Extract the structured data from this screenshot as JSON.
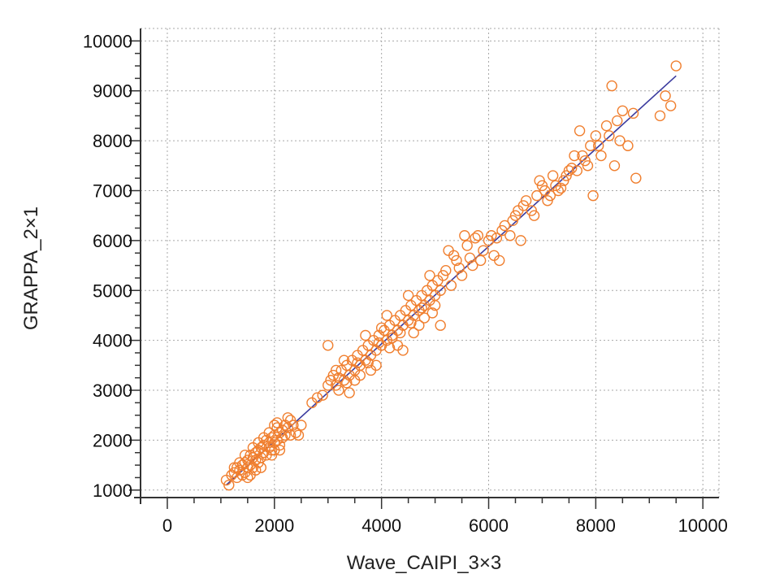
{
  "chart_data": {
    "type": "scatter",
    "title": "",
    "xlabel": "Wave_CAIPI_3×3",
    "ylabel": "GRAPPA_2×1",
    "xlim": [
      -500,
      10300
    ],
    "ylim": [
      850,
      10250
    ],
    "x_ticks": [
      0,
      2000,
      4000,
      6000,
      8000,
      10000
    ],
    "y_ticks": [
      1000,
      2000,
      3000,
      4000,
      5000,
      6000,
      7000,
      8000,
      9000,
      10000
    ],
    "grid": true,
    "colors": {
      "points": "#f07f2f",
      "fit_line": "#3a3a9e",
      "grid": "#a8a8a8",
      "axis": "#333333"
    },
    "fit_line": {
      "x": [
        1100,
        9500
      ],
      "y": [
        1100,
        9300
      ]
    },
    "series": [
      {
        "marker": "open-circle",
        "points": [
          [
            1100,
            1200
          ],
          [
            1150,
            1100
          ],
          [
            1200,
            1300
          ],
          [
            1250,
            1350
          ],
          [
            1300,
            1250
          ],
          [
            1300,
            1450
          ],
          [
            1350,
            1400
          ],
          [
            1400,
            1500
          ],
          [
            1400,
            1300
          ],
          [
            1450,
            1550
          ],
          [
            1450,
            1350
          ],
          [
            1500,
            1600
          ],
          [
            1500,
            1450
          ],
          [
            1550,
            1500
          ],
          [
            1550,
            1700
          ],
          [
            1600,
            1650
          ],
          [
            1600,
            1450
          ],
          [
            1650,
            1750
          ],
          [
            1650,
            1600
          ],
          [
            1700,
            1800
          ],
          [
            1700,
            1550
          ],
          [
            1750,
            1850
          ],
          [
            1750,
            1650
          ],
          [
            1800,
            1900
          ],
          [
            1800,
            1750
          ],
          [
            1850,
            2000
          ],
          [
            1850,
            1700
          ],
          [
            1900,
            1950
          ],
          [
            1900,
            1850
          ],
          [
            1950,
            2050
          ],
          [
            1950,
            1800
          ],
          [
            2000,
            2100
          ],
          [
            2000,
            1950
          ],
          [
            2050,
            2000
          ],
          [
            2050,
            2250
          ],
          [
            2100,
            2150
          ],
          [
            2100,
            1900
          ],
          [
            2150,
            2200
          ],
          [
            2150,
            2050
          ],
          [
            2200,
            2300
          ],
          [
            2200,
            2100
          ],
          [
            2250,
            2250
          ],
          [
            2300,
            2400
          ],
          [
            2350,
            2300
          ],
          [
            2400,
            2150
          ],
          [
            2450,
            2100
          ],
          [
            2500,
            2300
          ],
          [
            2000,
            2300
          ],
          [
            1600,
            1850
          ],
          [
            1450,
            1700
          ],
          [
            1350,
            1550
          ],
          [
            1250,
            1450
          ],
          [
            1700,
            1950
          ],
          [
            1800,
            2050
          ],
          [
            1900,
            2150
          ],
          [
            2050,
            2350
          ],
          [
            2250,
            2450
          ],
          [
            1750,
            1450
          ],
          [
            1650,
            1400
          ],
          [
            2100,
            1800
          ],
          [
            1550,
            1300
          ],
          [
            1500,
            1250
          ],
          [
            1950,
            1700
          ],
          [
            2000,
            1800
          ],
          [
            2300,
            2100
          ],
          [
            2700,
            2750
          ],
          [
            2800,
            2850
          ],
          [
            2900,
            2900
          ],
          [
            3000,
            3100
          ],
          [
            3000,
            3900
          ],
          [
            3050,
            3200
          ],
          [
            3100,
            3300
          ],
          [
            3150,
            3100
          ],
          [
            3200,
            3250
          ],
          [
            3250,
            3400
          ],
          [
            3300,
            3200
          ],
          [
            3350,
            3500
          ],
          [
            3400,
            3300
          ],
          [
            3450,
            3600
          ],
          [
            3500,
            3400
          ],
          [
            3550,
            3700
          ],
          [
            3600,
            3500
          ],
          [
            3650,
            3800
          ],
          [
            3700,
            3600
          ],
          [
            3750,
            3900
          ],
          [
            3800,
            3700
          ],
          [
            3850,
            4000
          ],
          [
            3900,
            3800
          ],
          [
            3950,
            4100
          ],
          [
            4000,
            3900
          ],
          [
            4050,
            4200
          ],
          [
            4100,
            4000
          ],
          [
            4150,
            4300
          ],
          [
            4200,
            4100
          ],
          [
            4250,
            4400
          ],
          [
            4300,
            4200
          ],
          [
            4350,
            4500
          ],
          [
            4400,
            4300
          ],
          [
            4450,
            4600
          ],
          [
            4500,
            4400
          ],
          [
            4550,
            4700
          ],
          [
            4600,
            4500
          ],
          [
            4650,
            4800
          ],
          [
            4700,
            4600
          ],
          [
            4750,
            4900
          ],
          [
            4800,
            4700
          ],
          [
            4850,
            5000
          ],
          [
            4900,
            4800
          ],
          [
            4950,
            5100
          ],
          [
            5000,
            4900
          ],
          [
            5050,
            5200
          ],
          [
            5100,
            5000
          ],
          [
            5150,
            5300
          ],
          [
            3300,
            3600
          ],
          [
            3500,
            3200
          ],
          [
            3700,
            4100
          ],
          [
            3900,
            3500
          ],
          [
            4100,
            4500
          ],
          [
            4300,
            3900
          ],
          [
            4500,
            4900
          ],
          [
            4700,
            4300
          ],
          [
            4900,
            5300
          ],
          [
            5100,
            4300
          ],
          [
            3200,
            3000
          ],
          [
            3400,
            2950
          ],
          [
            3600,
            3300
          ],
          [
            3800,
            3400
          ],
          [
            4000,
            4250
          ],
          [
            4200,
            4050
          ],
          [
            4400,
            3800
          ],
          [
            4600,
            4150
          ],
          [
            4800,
            4450
          ],
          [
            5000,
            4700
          ],
          [
            3150,
            3400
          ],
          [
            3350,
            3150
          ],
          [
            3550,
            3550
          ],
          [
            3750,
            3550
          ],
          [
            3950,
            3950
          ],
          [
            4150,
            3850
          ],
          [
            4350,
            4150
          ],
          [
            4550,
            4350
          ],
          [
            4750,
            4650
          ],
          [
            4950,
            4550
          ],
          [
            5200,
            5400
          ],
          [
            5250,
            5800
          ],
          [
            5300,
            5100
          ],
          [
            5400,
            5600
          ],
          [
            5500,
            5300
          ],
          [
            5600,
            5900
          ],
          [
            5700,
            5500
          ],
          [
            5800,
            6100
          ],
          [
            5900,
            5800
          ],
          [
            6000,
            6000
          ],
          [
            6100,
            5700
          ],
          [
            6200,
            5600
          ],
          [
            6300,
            6300
          ],
          [
            6400,
            6100
          ],
          [
            6500,
            6500
          ],
          [
            6600,
            6000
          ],
          [
            6700,
            6800
          ],
          [
            6800,
            6600
          ],
          [
            6900,
            6900
          ],
          [
            7000,
            7100
          ],
          [
            7100,
            6800
          ],
          [
            7200,
            7300
          ],
          [
            7300,
            7000
          ],
          [
            7400,
            7200
          ],
          [
            7500,
            7400
          ],
          [
            7600,
            7700
          ],
          [
            7700,
            8200
          ],
          [
            7800,
            7600
          ],
          [
            7900,
            7900
          ],
          [
            8000,
            8100
          ],
          [
            8100,
            7700
          ],
          [
            8200,
            8300
          ],
          [
            8300,
            9100
          ],
          [
            8350,
            7500
          ],
          [
            8400,
            8400
          ],
          [
            8500,
            8600
          ],
          [
            8600,
            7900
          ],
          [
            8700,
            8550
          ],
          [
            8750,
            7250
          ],
          [
            7950,
            6900
          ],
          [
            9200,
            8500
          ],
          [
            9300,
            8900
          ],
          [
            9400,
            8700
          ],
          [
            9500,
            9500
          ],
          [
            5350,
            5700
          ],
          [
            5450,
            5450
          ],
          [
            5650,
            5650
          ],
          [
            5850,
            5600
          ],
          [
            6050,
            6100
          ],
          [
            6250,
            6200
          ],
          [
            6450,
            6400
          ],
          [
            6650,
            6700
          ],
          [
            6850,
            6500
          ],
          [
            7050,
            7000
          ],
          [
            7250,
            7100
          ],
          [
            7450,
            7300
          ],
          [
            7650,
            7400
          ],
          [
            7850,
            7500
          ],
          [
            8050,
            7900
          ],
          [
            8250,
            8100
          ],
          [
            8450,
            8000
          ],
          [
            5550,
            6100
          ],
          [
            5750,
            6050
          ],
          [
            6150,
            6050
          ],
          [
            6550,
            6600
          ],
          [
            6950,
            7200
          ],
          [
            7150,
            6900
          ],
          [
            7350,
            7050
          ],
          [
            7550,
            7450
          ],
          [
            7750,
            7700
          ]
        ]
      }
    ]
  }
}
